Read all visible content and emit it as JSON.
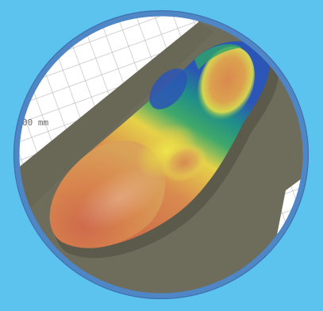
{
  "scene": {
    "background_color": "#5bc3ee",
    "ring_color": "#4f86c6",
    "floor_color": "#6e6c5a",
    "grid_color": "#ffffff",
    "grid_line_color": "#b8b8b8"
  },
  "scale_label": "00 mm",
  "heatmap_colors": {
    "low": "#2b4fb8",
    "mid_low": "#1f9e7a",
    "mid": "#e8e23a",
    "mid_high": "#e0a04a",
    "high": "#c8644a"
  }
}
